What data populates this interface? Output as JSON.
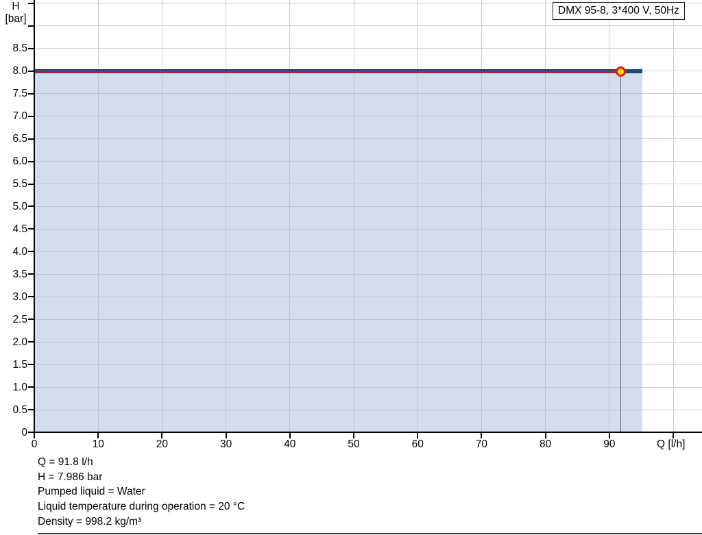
{
  "legend": {
    "label": "DMX 95-8, 3*400 V, 50Hz"
  },
  "axes": {
    "y_label_line1": "H",
    "y_label_line2": "[bar]",
    "x_label": "Q [l/h]"
  },
  "info": {
    "lines": [
      "Q = 91.8 l/h",
      "H = 7.986 bar",
      "Pumped liquid = Water",
      "Liquid temperature during operation = 20 °C",
      "Density = 998.2 kg/m³"
    ]
  },
  "colors": {
    "curve_navy": "#1e4a7a",
    "highlight_red": "#e0161c",
    "marker_fill": "#ffe400",
    "marker_stroke": "#e8141c",
    "area_fill": "rgba(165,190,220,0.5)",
    "gridline": "#cdcdcd",
    "axis": "#000000",
    "drop_line": "#5f6368"
  },
  "chart_data": {
    "type": "area",
    "title": "DMX 95-8, 3*400 V, 50Hz",
    "xlabel": "Q [l/h]",
    "ylabel": "H [bar]",
    "xlim": [
      0,
      104.5
    ],
    "ylim": [
      0,
      9.575
    ],
    "grid": true,
    "x_ticks": [
      0,
      10,
      20,
      30,
      40,
      50,
      60,
      70,
      80,
      90,
      100
    ],
    "x_tick_label_max": 90,
    "y_ticks": [
      0,
      0.5,
      1.0,
      1.5,
      2.0,
      2.5,
      3.0,
      3.5,
      4.0,
      4.5,
      5.0,
      5.5,
      6.0,
      6.5,
      7.0,
      7.5,
      8.0,
      8.5,
      9.0,
      9.5
    ],
    "y_tick_label_max": 8.5,
    "series": [
      {
        "name": "pump-curve",
        "color": "#1e4a7a",
        "thickness": 6,
        "x": [
          0,
          95.2
        ],
        "y": [
          7.99,
          7.99
        ]
      },
      {
        "name": "selected-operating-range",
        "color": "#e0161c",
        "thickness": 2.4,
        "x": [
          0,
          91.8
        ],
        "y": [
          7.986,
          7.986
        ]
      }
    ],
    "operating_point": {
      "x": 91.8,
      "y": 7.986
    },
    "annotations": [
      "Q = 91.8 l/h",
      "H = 7.986 bar",
      "Pumped liquid = Water",
      "Liquid temperature during operation = 20 °C",
      "Density = 998.2 kg/m³"
    ],
    "legend_position": "top-right"
  }
}
